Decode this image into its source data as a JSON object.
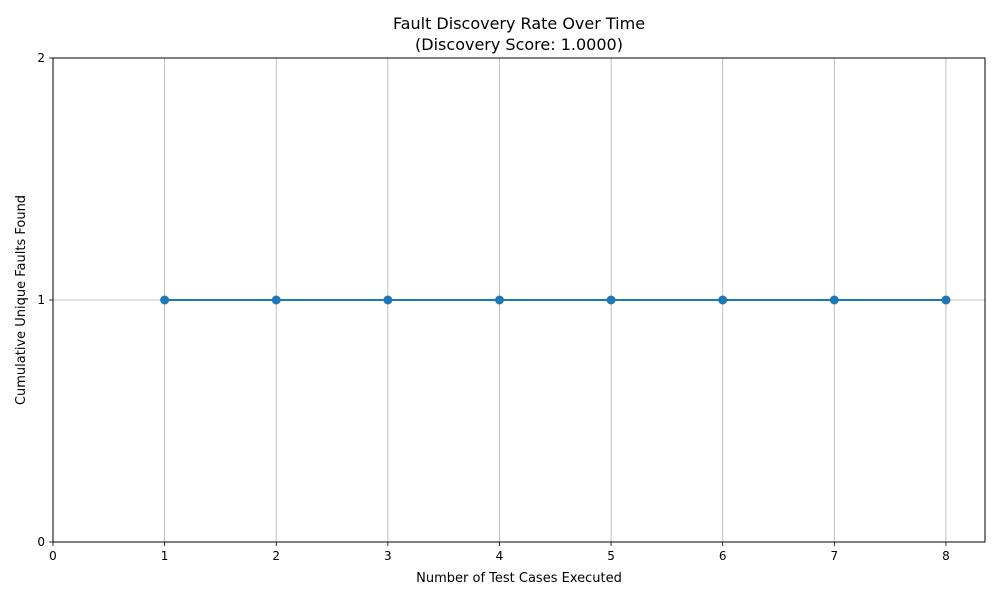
{
  "chart_data": {
    "type": "line",
    "title": "Fault Discovery Rate Over Time",
    "subtitle": "(Discovery Score: 1.0000)",
    "xlabel": "Number of Test Cases Executed",
    "ylabel": "Cumulative Unique Faults Found",
    "xlim": [
      0,
      8.35
    ],
    "ylim": [
      0,
      2
    ],
    "x_ticks": [
      0,
      1,
      2,
      3,
      4,
      5,
      6,
      7,
      8
    ],
    "y_ticks": [
      0,
      1,
      2
    ],
    "grid": true,
    "series": [
      {
        "x": [
          1,
          2,
          3,
          4,
          5,
          6,
          7,
          8
        ],
        "values": [
          1,
          1,
          1,
          1,
          1,
          1,
          1,
          1
        ],
        "color": "#1f77b4",
        "marker": "circle"
      }
    ]
  }
}
